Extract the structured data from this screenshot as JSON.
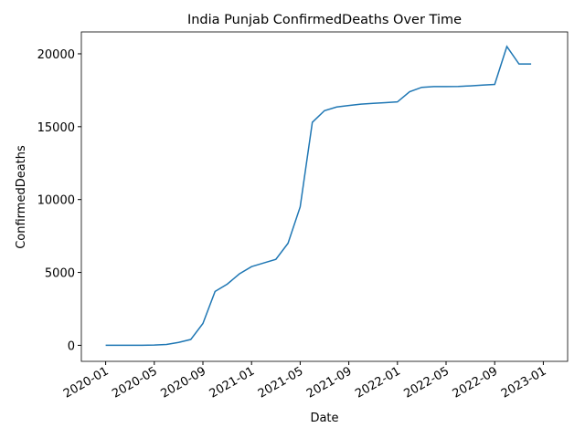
{
  "chart_data": {
    "type": "line",
    "title": "India Punjab ConfirmedDeaths Over Time",
    "x_label": "Date",
    "y_label": "ConfirmedDeaths",
    "x": [
      "2020-01",
      "2020-02",
      "2020-03",
      "2020-04",
      "2020-05",
      "2020-06",
      "2020-07",
      "2020-08",
      "2020-09",
      "2020-10",
      "2020-11",
      "2020-12",
      "2021-01",
      "2021-02",
      "2021-03",
      "2021-04",
      "2021-05",
      "2021-06",
      "2021-07",
      "2021-08",
      "2021-09",
      "2021-10",
      "2021-11",
      "2021-12",
      "2022-01",
      "2022-02",
      "2022-03",
      "2022-04",
      "2022-05",
      "2022-06",
      "2022-07",
      "2022-08",
      "2022-09",
      "2022-10",
      "2022-11",
      "2022-12"
    ],
    "series": [
      {
        "name": "ConfirmedDeaths",
        "color": "#1f77b4",
        "values": [
          0,
          0,
          0,
          5,
          20,
          60,
          200,
          400,
          1500,
          3700,
          4200,
          4900,
          5400,
          5650,
          5900,
          7000,
          9500,
          15300,
          16100,
          16350,
          16450,
          16550,
          16600,
          16650,
          16700,
          17400,
          17700,
          17750,
          17750,
          17760,
          17800,
          17850,
          17900,
          20500,
          19300,
          19300
        ]
      }
    ],
    "xlim": [
      "2019-11",
      "2023-03"
    ],
    "xticks": [
      "2020-01",
      "2020-05",
      "2020-09",
      "2021-01",
      "2021-05",
      "2021-09",
      "2022-01",
      "2022-05",
      "2022-09",
      "2023-01"
    ],
    "ylim": [
      -1100,
      21500
    ],
    "yticks": [
      0,
      5000,
      10000,
      15000,
      20000
    ]
  }
}
